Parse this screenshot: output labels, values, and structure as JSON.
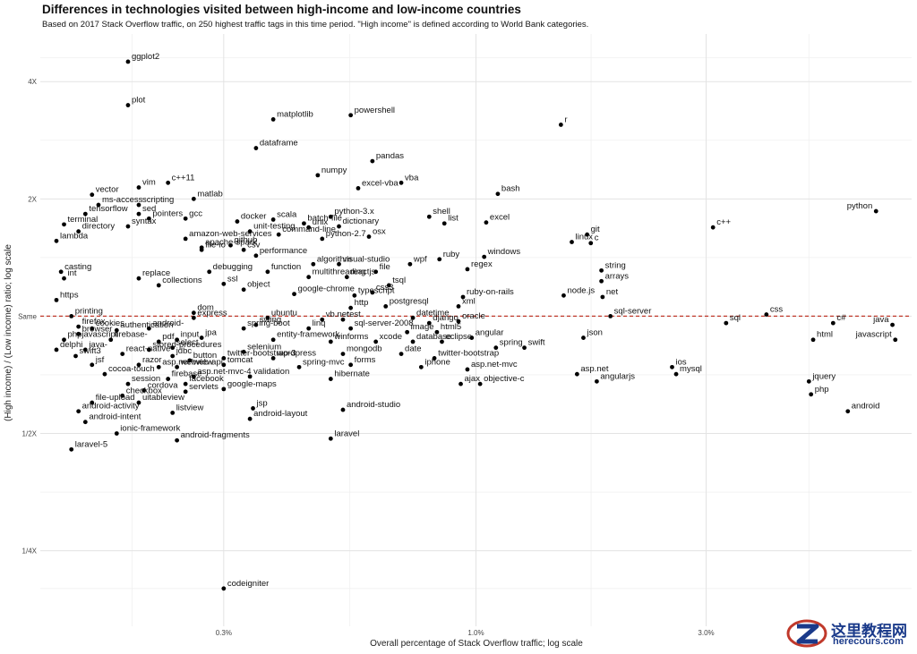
{
  "title": "Differences in technologies visited between high-income and low-income countries",
  "subtitle": "Based on 2017 Stack Overflow traffic, on 250 highest traffic tags in this time period. \"High income\" is defined according to World Bank categories.",
  "watermark": {
    "cn": "这里教程网",
    "en": "herecours.com"
  },
  "chart_data": {
    "type": "scatter",
    "xlabel": "Overall percentage of Stack Overflow traffic; log scale",
    "ylabel": "(High income) / (Low income) ratio; log scale",
    "x_scale": "log",
    "y_scale": "log",
    "x_ticks": [
      {
        "value": 0.3,
        "label": "0.3%"
      },
      {
        "value": 1.0,
        "label": "1.0%"
      },
      {
        "value": 3.0,
        "label": "3.0%"
      }
    ],
    "y_ticks": [
      {
        "value": 4,
        "label": "4X"
      },
      {
        "value": 2,
        "label": "2X"
      },
      {
        "value": 1,
        "label": "Same"
      },
      {
        "value": 0.5,
        "label": "1/2X"
      },
      {
        "value": 0.25,
        "label": "1/4X"
      }
    ],
    "reference_line": {
      "y": 1,
      "style": "dashed",
      "color": "#c0392b"
    },
    "xlim": [
      0.125,
      8.0
    ],
    "ylim": [
      0.16,
      5.3
    ],
    "grid": true,
    "point_color": "#000000",
    "points": [
      {
        "label": "ggplot2",
        "x": 0.19,
        "y": 4.5
      },
      {
        "label": "plot",
        "x": 0.19,
        "y": 3.48
      },
      {
        "label": "matplotlib",
        "x": 0.38,
        "y": 3.2
      },
      {
        "label": "powershell",
        "x": 0.55,
        "y": 3.28
      },
      {
        "label": "r",
        "x": 1.5,
        "y": 3.1
      },
      {
        "label": "dataframe",
        "x": 0.35,
        "y": 2.7
      },
      {
        "label": "pandas",
        "x": 0.61,
        "y": 2.5
      },
      {
        "label": "numpy",
        "x": 0.47,
        "y": 2.3
      },
      {
        "label": "vba",
        "x": 0.7,
        "y": 2.2
      },
      {
        "label": "excel-vba",
        "x": 0.57,
        "y": 2.13
      },
      {
        "label": "bash",
        "x": 1.11,
        "y": 2.06
      },
      {
        "label": "c++11",
        "x": 0.23,
        "y": 2.2
      },
      {
        "label": "vim",
        "x": 0.2,
        "y": 2.14
      },
      {
        "label": "vector",
        "x": 0.16,
        "y": 2.05
      },
      {
        "label": "matlab",
        "x": 0.26,
        "y": 2.0
      },
      {
        "label": "ms-access",
        "x": 0.165,
        "y": 1.93
      },
      {
        "label": "scripting",
        "x": 0.2,
        "y": 1.93
      },
      {
        "label": "tensorflow",
        "x": 0.155,
        "y": 1.83
      },
      {
        "label": "sed",
        "x": 0.2,
        "y": 1.83
      },
      {
        "label": "pointers",
        "x": 0.21,
        "y": 1.78
      },
      {
        "label": "gcc",
        "x": 0.25,
        "y": 1.78
      },
      {
        "label": "terminal",
        "x": 0.14,
        "y": 1.72
      },
      {
        "label": "syntax",
        "x": 0.19,
        "y": 1.7
      },
      {
        "label": "directory",
        "x": 0.15,
        "y": 1.65
      },
      {
        "label": "lambda",
        "x": 0.135,
        "y": 1.56
      },
      {
        "label": "docker",
        "x": 0.32,
        "y": 1.75
      },
      {
        "label": "scala",
        "x": 0.38,
        "y": 1.77
      },
      {
        "label": "batch-file",
        "x": 0.44,
        "y": 1.73
      },
      {
        "label": "python-3.x",
        "x": 0.5,
        "y": 1.8
      },
      {
        "label": "dictionary",
        "x": 0.52,
        "y": 1.7
      },
      {
        "label": "unix",
        "x": 0.45,
        "y": 1.69
      },
      {
        "label": "shell",
        "x": 0.8,
        "y": 1.8
      },
      {
        "label": "excel",
        "x": 1.05,
        "y": 1.74
      },
      {
        "label": "list",
        "x": 0.86,
        "y": 1.73
      },
      {
        "label": "unit-testing",
        "x": 0.34,
        "y": 1.65
      },
      {
        "label": "command-line",
        "x": 0.39,
        "y": 1.62
      },
      {
        "label": "python-2.7",
        "x": 0.48,
        "y": 1.58
      },
      {
        "label": "osx",
        "x": 0.6,
        "y": 1.6
      },
      {
        "label": "git",
        "x": 1.7,
        "y": 1.62
      },
      {
        "label": "linux",
        "x": 1.58,
        "y": 1.55
      },
      {
        "label": "c",
        "x": 1.73,
        "y": 1.54
      },
      {
        "label": "c++",
        "x": 3.1,
        "y": 1.69
      },
      {
        "label": "python",
        "x": 6.75,
        "y": 1.86
      },
      {
        "label": "github",
        "x": 0.31,
        "y": 1.52
      },
      {
        "label": "csv",
        "x": 0.33,
        "y": 1.48
      },
      {
        "label": "performance",
        "x": 0.35,
        "y": 1.43
      },
      {
        "label": "ruby",
        "x": 0.84,
        "y": 1.4
      },
      {
        "label": "windows",
        "x": 1.04,
        "y": 1.42
      },
      {
        "label": "wpf",
        "x": 0.73,
        "y": 1.36
      },
      {
        "label": "regex",
        "x": 0.96,
        "y": 1.32
      },
      {
        "label": "algorithm",
        "x": 0.46,
        "y": 1.36
      },
      {
        "label": "visual-studio",
        "x": 0.52,
        "y": 1.36
      },
      {
        "label": "function",
        "x": 0.37,
        "y": 1.3
      },
      {
        "label": "multithreading",
        "x": 0.45,
        "y": 1.26
      },
      {
        "label": "file",
        "x": 0.62,
        "y": 1.3
      },
      {
        "label": "string",
        "x": 1.82,
        "y": 1.31
      },
      {
        "label": "arrays",
        "x": 1.82,
        "y": 1.23
      },
      {
        "label": "reactjs",
        "x": 0.54,
        "y": 1.26
      },
      {
        "label": "tsql",
        "x": 0.66,
        "y": 1.2
      },
      {
        "label": "css3",
        "x": 0.61,
        "y": 1.15
      },
      {
        "label": "node.js",
        "x": 1.52,
        "y": 1.13
      },
      {
        "label": "net",
        "x": 1.83,
        "y": 1.12
      },
      {
        "label": "ruby-on-rails",
        "x": 0.94,
        "y": 1.12
      },
      {
        "label": "typescript",
        "x": 0.56,
        "y": 1.13
      },
      {
        "label": "google-chrome",
        "x": 0.42,
        "y": 1.14
      },
      {
        "label": "object",
        "x": 0.33,
        "y": 1.17
      },
      {
        "label": "ssl",
        "x": 0.3,
        "y": 1.21
      },
      {
        "label": "xml",
        "x": 0.92,
        "y": 1.06
      },
      {
        "label": "postgresql",
        "x": 0.65,
        "y": 1.06
      },
      {
        "label": "http",
        "x": 0.55,
        "y": 1.05
      },
      {
        "label": "css",
        "x": 4.0,
        "y": 1.01
      },
      {
        "label": "sql-server",
        "x": 1.9,
        "y": 1.0
      },
      {
        "label": "datetime",
        "x": 0.74,
        "y": 0.99
      },
      {
        "label": "oracle",
        "x": 0.92,
        "y": 0.97
      },
      {
        "label": "django",
        "x": 0.8,
        "y": 0.96
      },
      {
        "label": "sql",
        "x": 3.3,
        "y": 0.96
      },
      {
        "label": "c#",
        "x": 5.5,
        "y": 0.96
      },
      {
        "label": "java",
        "x": 7.3,
        "y": 0.95
      },
      {
        "label": "html",
        "x": 5.0,
        "y": 0.87
      },
      {
        "label": "javascript",
        "x": 7.4,
        "y": 0.87
      },
      {
        "label": "json",
        "x": 1.67,
        "y": 0.88
      },
      {
        "label": "html5",
        "x": 0.83,
        "y": 0.91
      },
      {
        "label": "angular",
        "x": 0.98,
        "y": 0.88
      },
      {
        "label": "image",
        "x": 0.72,
        "y": 0.91
      },
      {
        "label": "eclipse",
        "x": 0.85,
        "y": 0.86
      },
      {
        "label": "database",
        "x": 0.74,
        "y": 0.86
      },
      {
        "label": "spring",
        "x": 1.1,
        "y": 0.83
      },
      {
        "label": "swift",
        "x": 1.26,
        "y": 0.83
      },
      {
        "label": "date",
        "x": 0.7,
        "y": 0.8
      },
      {
        "label": "twitter-bootstrap",
        "x": 0.82,
        "y": 0.78
      },
      {
        "label": "iphone",
        "x": 0.77,
        "y": 0.74
      },
      {
        "label": "asp.net-mvc",
        "x": 0.96,
        "y": 0.73
      },
      {
        "label": "asp.net",
        "x": 1.62,
        "y": 0.71
      },
      {
        "label": "ios",
        "x": 2.55,
        "y": 0.74
      },
      {
        "label": "mysql",
        "x": 2.6,
        "y": 0.71
      },
      {
        "label": "angularjs",
        "x": 1.78,
        "y": 0.68
      },
      {
        "label": "ajax",
        "x": 0.93,
        "y": 0.67
      },
      {
        "label": "objective-c",
        "x": 1.02,
        "y": 0.67
      },
      {
        "label": "jquery",
        "x": 4.9,
        "y": 0.68
      },
      {
        "label": "php",
        "x": 4.95,
        "y": 0.63
      },
      {
        "label": "android",
        "x": 5.9,
        "y": 0.57
      },
      {
        "label": "linq",
        "x": 0.45,
        "y": 0.93
      },
      {
        "label": "sql-server-2008",
        "x": 0.55,
        "y": 0.93
      },
      {
        "label": "winforms",
        "x": 0.5,
        "y": 0.86
      },
      {
        "label": "vb.net",
        "x": 0.48,
        "y": 0.98
      },
      {
        "label": "rest",
        "x": 0.53,
        "y": 0.98
      },
      {
        "label": "xcode",
        "x": 0.62,
        "y": 0.86
      },
      {
        "label": "mongodb",
        "x": 0.53,
        "y": 0.8
      },
      {
        "label": "forms",
        "x": 0.55,
        "y": 0.75
      },
      {
        "label": "spring-mvc",
        "x": 0.43,
        "y": 0.74
      },
      {
        "label": "hibernate",
        "x": 0.5,
        "y": 0.69
      },
      {
        "label": "wordpress",
        "x": 0.38,
        "y": 0.78
      },
      {
        "label": "selenium",
        "x": 0.33,
        "y": 0.81
      },
      {
        "label": "entity-framework",
        "x": 0.38,
        "y": 0.87
      },
      {
        "label": "spring-boot",
        "x": 0.33,
        "y": 0.93
      },
      {
        "label": "ubuntu",
        "x": 0.37,
        "y": 0.99
      },
      {
        "label": "tomcat",
        "x": 0.3,
        "y": 0.75
      },
      {
        "label": "twitter-bootstrap-3",
        "x": 0.3,
        "y": 0.78
      },
      {
        "label": "validation",
        "x": 0.34,
        "y": 0.7
      },
      {
        "label": "google-maps",
        "x": 0.3,
        "y": 0.65
      },
      {
        "label": "servlets",
        "x": 0.25,
        "y": 0.64
      },
      {
        "label": "facebook",
        "x": 0.25,
        "y": 0.67
      },
      {
        "label": "asp.net-mvc-4",
        "x": 0.26,
        "y": 0.7
      },
      {
        "label": "firebase",
        "x": 0.23,
        "y": 0.69
      },
      {
        "label": "session",
        "x": 0.19,
        "y": 0.67
      },
      {
        "label": "cordova",
        "x": 0.205,
        "y": 0.645
      },
      {
        "label": "checkbox",
        "x": 0.185,
        "y": 0.625
      },
      {
        "label": "uitableview",
        "x": 0.2,
        "y": 0.6
      },
      {
        "label": "file-upload",
        "x": 0.16,
        "y": 0.6
      },
      {
        "label": "android-activity",
        "x": 0.15,
        "y": 0.57
      },
      {
        "label": "listview",
        "x": 0.235,
        "y": 0.565
      },
      {
        "label": "android-intent",
        "x": 0.155,
        "y": 0.535
      },
      {
        "label": "android-layout",
        "x": 0.34,
        "y": 0.545
      },
      {
        "label": "jsp",
        "x": 0.345,
        "y": 0.58
      },
      {
        "label": "android-studio",
        "x": 0.53,
        "y": 0.575
      },
      {
        "label": "ionic-framework",
        "x": 0.18,
        "y": 0.5
      },
      {
        "label": "android-fragments",
        "x": 0.24,
        "y": 0.48
      },
      {
        "label": "laravel",
        "x": 0.5,
        "y": 0.485
      },
      {
        "label": "laravel-5",
        "x": 0.145,
        "y": 0.455
      },
      {
        "label": "codeigniter",
        "x": 0.3,
        "y": 0.2
      },
      {
        "label": "cocoa-touch",
        "x": 0.17,
        "y": 0.71
      },
      {
        "label": "jsf",
        "x": 0.16,
        "y": 0.75
      },
      {
        "label": "razor",
        "x": 0.2,
        "y": 0.75
      },
      {
        "label": "asp.net-web-api",
        "x": 0.22,
        "y": 0.74
      },
      {
        "label": "webview",
        "x": 0.24,
        "y": 0.74
      },
      {
        "label": "swift3",
        "x": 0.148,
        "y": 0.79
      },
      {
        "label": "delphi",
        "x": 0.135,
        "y": 0.82
      },
      {
        "label": "jdbc",
        "x": 0.235,
        "y": 0.79
      },
      {
        "label": "button",
        "x": 0.255,
        "y": 0.77
      },
      {
        "label": "stored-procedures",
        "x": 0.21,
        "y": 0.82
      },
      {
        "label": "react-native",
        "x": 0.185,
        "y": 0.8
      },
      {
        "label": "java-",
        "x": 0.155,
        "y": 0.82
      },
      {
        "label": "phpjavascript",
        "x": 0.14,
        "y": 0.87
      },
      {
        "label": "firebase-",
        "x": 0.175,
        "y": 0.87
      },
      {
        "label": "pdf",
        "x": 0.22,
        "y": 0.86
      },
      {
        "label": "input",
        "x": 0.24,
        "y": 0.87
      },
      {
        "label": "jpa",
        "x": 0.27,
        "y": 0.88
      },
      {
        "label": "select",
        "x": 0.235,
        "y": 0.83
      },
      {
        "label": "firefox",
        "x": 0.15,
        "y": 0.94
      },
      {
        "label": "cookies",
        "x": 0.16,
        "y": 0.93
      },
      {
        "label": "authentication",
        "x": 0.18,
        "y": 0.92
      },
      {
        "label": "android-",
        "x": 0.21,
        "y": 0.93
      },
      {
        "label": "browser",
        "x": 0.15,
        "y": 0.9
      },
      {
        "label": "printing",
        "x": 0.145,
        "y": 1.0
      },
      {
        "label": "express",
        "x": 0.26,
        "y": 0.99
      },
      {
        "label": "dom",
        "x": 0.26,
        "y": 1.02
      },
      {
        "label": "apache-spark",
        "x": 0.27,
        "y": 1.5
      },
      {
        "label": "https",
        "x": 0.135,
        "y": 1.1
      },
      {
        "label": "casting",
        "x": 0.138,
        "y": 1.3
      },
      {
        "label": "int",
        "x": 0.14,
        "y": 1.25
      },
      {
        "label": "swing",
        "x": 0.35,
        "y": 0.95
      },
      {
        "label": "debugging",
        "x": 0.28,
        "y": 1.3
      },
      {
        "label": "file-io",
        "x": 0.27,
        "y": 1.48
      },
      {
        "label": "amazon-web-services",
        "x": 0.25,
        "y": 1.58
      },
      {
        "label": "replace",
        "x": 0.2,
        "y": 1.25
      },
      {
        "label": "collections",
        "x": 0.22,
        "y": 1.2
      }
    ]
  }
}
